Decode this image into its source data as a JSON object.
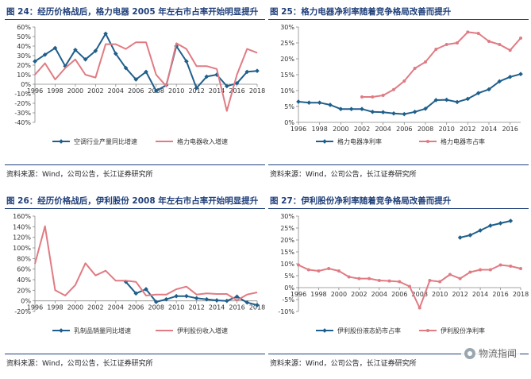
{
  "page": {
    "watermark_text": "物流指闻",
    "watermark_icon": "wechat-icon"
  },
  "charts": [
    {
      "title": "图 24：经历价格战后，格力电器 2005 年左右市占率开始明显提升",
      "source": "资料来源：Wind，公司公告，长江证券研究所"
    },
    {
      "title": "图 25：格力电器净利率随着竞争格局改善而提升",
      "source": "资料来源：Wind，公司公告，长江证券研究所"
    },
    {
      "title": "图 26：经历价格战后，伊利股份 2008 年左右市占率开始明显提升",
      "source": "资料来源：Wind，公司公告，长江证券研究所"
    },
    {
      "title": "图 27：伊利股份净利率随着竞争格局改善而提升",
      "source": "资料来源：Wind，公司公告，长江证券研究所"
    }
  ],
  "chart_data": [
    {
      "type": "line",
      "ylim": [
        -40,
        60
      ],
      "yticks": [
        -40,
        -30,
        -20,
        -10,
        0,
        10,
        20,
        30,
        40,
        50,
        60
      ],
      "y_format": "percent",
      "x_range": [
        1996,
        2018
      ],
      "xticks": [
        1996,
        1998,
        2000,
        2002,
        2004,
        2006,
        2008,
        2010,
        2012,
        2014,
        2016,
        2018
      ],
      "x_axis_at": 0,
      "legend_position": "bottom",
      "series": [
        {
          "name": "空调行业产量同比增速",
          "color": "#1f5f8b",
          "marker": "diamond",
          "x": [
            1996,
            1997,
            1998,
            1999,
            2000,
            2001,
            2002,
            2003,
            2004,
            2005,
            2006,
            2007,
            2008,
            2009,
            2010,
            2011,
            2012,
            2013,
            2014,
            2015,
            2016,
            2017,
            2018
          ],
          "y": [
            24,
            31,
            38,
            19,
            36,
            26,
            35,
            53,
            32,
            17,
            5,
            13,
            -7,
            -1,
            40,
            24,
            -4,
            8,
            10,
            -2,
            1,
            13,
            14
          ]
        },
        {
          "name": "格力电器收入增速",
          "color": "#e07b83",
          "marker": "none",
          "x": [
            1996,
            1997,
            1998,
            1999,
            2000,
            2001,
            2002,
            2003,
            2004,
            2005,
            2006,
            2007,
            2008,
            2009,
            2010,
            2011,
            2012,
            2013,
            2014,
            2015,
            2016,
            2017,
            2018
          ],
          "y": [
            10,
            22,
            5,
            17,
            26,
            10,
            7,
            42,
            42,
            37,
            44,
            44,
            10,
            -2,
            43,
            37,
            19,
            19,
            16,
            -28,
            10,
            37,
            33
          ]
        }
      ]
    },
    {
      "type": "line",
      "ylim": [
        0,
        30
      ],
      "yticks": [
        0,
        5,
        10,
        15,
        20,
        25,
        30
      ],
      "y_format": "percent",
      "x_range": [
        1996,
        2017
      ],
      "xticks": [
        1996,
        1998,
        2000,
        2002,
        2004,
        2006,
        2008,
        2010,
        2012,
        2014,
        2016
      ],
      "x_axis_at": 0,
      "legend_position": "bottom",
      "series": [
        {
          "name": "格力电器净利率",
          "color": "#1f5f8b",
          "marker": "diamond",
          "x": [
            1996,
            1997,
            1998,
            1999,
            2000,
            2001,
            2002,
            2003,
            2004,
            2005,
            2006,
            2007,
            2008,
            2009,
            2010,
            2011,
            2012,
            2013,
            2014,
            2015,
            2016,
            2017
          ],
          "y": [
            6.5,
            6.2,
            6.2,
            5.5,
            4.2,
            4.2,
            4.2,
            3.3,
            3.2,
            2.8,
            2.6,
            3.3,
            4.3,
            7,
            7.1,
            6.4,
            7.4,
            9.2,
            10.4,
            12.9,
            14.3,
            15.2
          ]
        },
        {
          "name": "格力电器市占率",
          "color": "#e07b83",
          "marker": "circle",
          "x": [
            2002,
            2003,
            2004,
            2005,
            2006,
            2007,
            2008,
            2009,
            2010,
            2011,
            2012,
            2013,
            2014,
            2015,
            2016,
            2017
          ],
          "y": [
            8,
            8,
            8.5,
            10.3,
            13,
            17,
            19,
            23,
            24.5,
            25,
            28.4,
            28,
            25.5,
            24.5,
            22.7,
            26.5
          ]
        }
      ]
    },
    {
      "type": "line",
      "ylim": [
        -20,
        160
      ],
      "yticks": [
        -20,
        0,
        20,
        40,
        60,
        80,
        100,
        120,
        140,
        160
      ],
      "y_format": "percent",
      "x_range": [
        1996,
        2018
      ],
      "xticks": [
        1996,
        1998,
        2000,
        2002,
        2004,
        2006,
        2008,
        2010,
        2012,
        2014,
        2016,
        2018
      ],
      "x_axis_at": 0,
      "legend_position": "bottom",
      "series": [
        {
          "name": "乳制品销量同比增速",
          "color": "#1f5f8b",
          "marker": "diamond",
          "x": [
            2005,
            2006,
            2007,
            2008,
            2009,
            2010,
            2011,
            2012,
            2013,
            2014,
            2015,
            2016,
            2017,
            2018
          ],
          "y": [
            36,
            14,
            22,
            -2,
            3,
            9,
            9,
            5,
            3,
            1,
            0,
            8,
            -3,
            -8
          ]
        },
        {
          "name": "伊利股份收入增速",
          "color": "#e07b83",
          "marker": "none",
          "x": [
            1996,
            1997,
            1998,
            1999,
            2000,
            2001,
            2002,
            2003,
            2004,
            2005,
            2006,
            2007,
            2008,
            2009,
            2010,
            2011,
            2012,
            2013,
            2014,
            2015,
            2016,
            2017,
            2018
          ],
          "y": [
            70,
            141,
            20,
            10,
            30,
            71,
            48,
            57,
            38,
            38,
            36,
            10,
            12,
            12,
            22,
            27,
            12,
            14,
            13,
            13,
            1,
            12,
            16
          ]
        }
      ]
    },
    {
      "type": "line",
      "ylim": [
        -10,
        30
      ],
      "yticks": [
        -10,
        -5,
        0,
        5,
        10,
        15,
        20,
        25,
        30
      ],
      "y_format": "percent",
      "x_range": [
        1996,
        2018
      ],
      "xticks": [
        1996,
        1998,
        2000,
        2002,
        2004,
        2006,
        2008,
        2010,
        2012,
        2014,
        2016,
        2018
      ],
      "x_axis_at": 0,
      "legend_position": "bottom",
      "series": [
        {
          "name": "伊利股份液态奶市占率",
          "color": "#1f5f8b",
          "marker": "diamond",
          "x": [
            2012,
            2013,
            2014,
            2015,
            2016,
            2017
          ],
          "y": [
            21,
            22,
            24,
            26,
            27,
            28
          ]
        },
        {
          "name": "伊利股份净利率",
          "color": "#e07b83",
          "marker": "circle",
          "x": [
            1996,
            1997,
            1998,
            1999,
            2000,
            2001,
            2002,
            2003,
            2004,
            2005,
            2006,
            2007,
            2008,
            2009,
            2010,
            2011,
            2012,
            2013,
            2014,
            2015,
            2016,
            2017,
            2018
          ],
          "y": [
            9.5,
            7.5,
            7,
            8,
            7,
            4.5,
            3.8,
            3.8,
            3,
            2.8,
            2.5,
            0.5,
            -8.5,
            3,
            2.5,
            5.5,
            3.8,
            6.5,
            7.5,
            7.5,
            9.5,
            9,
            8
          ]
        }
      ]
    }
  ]
}
